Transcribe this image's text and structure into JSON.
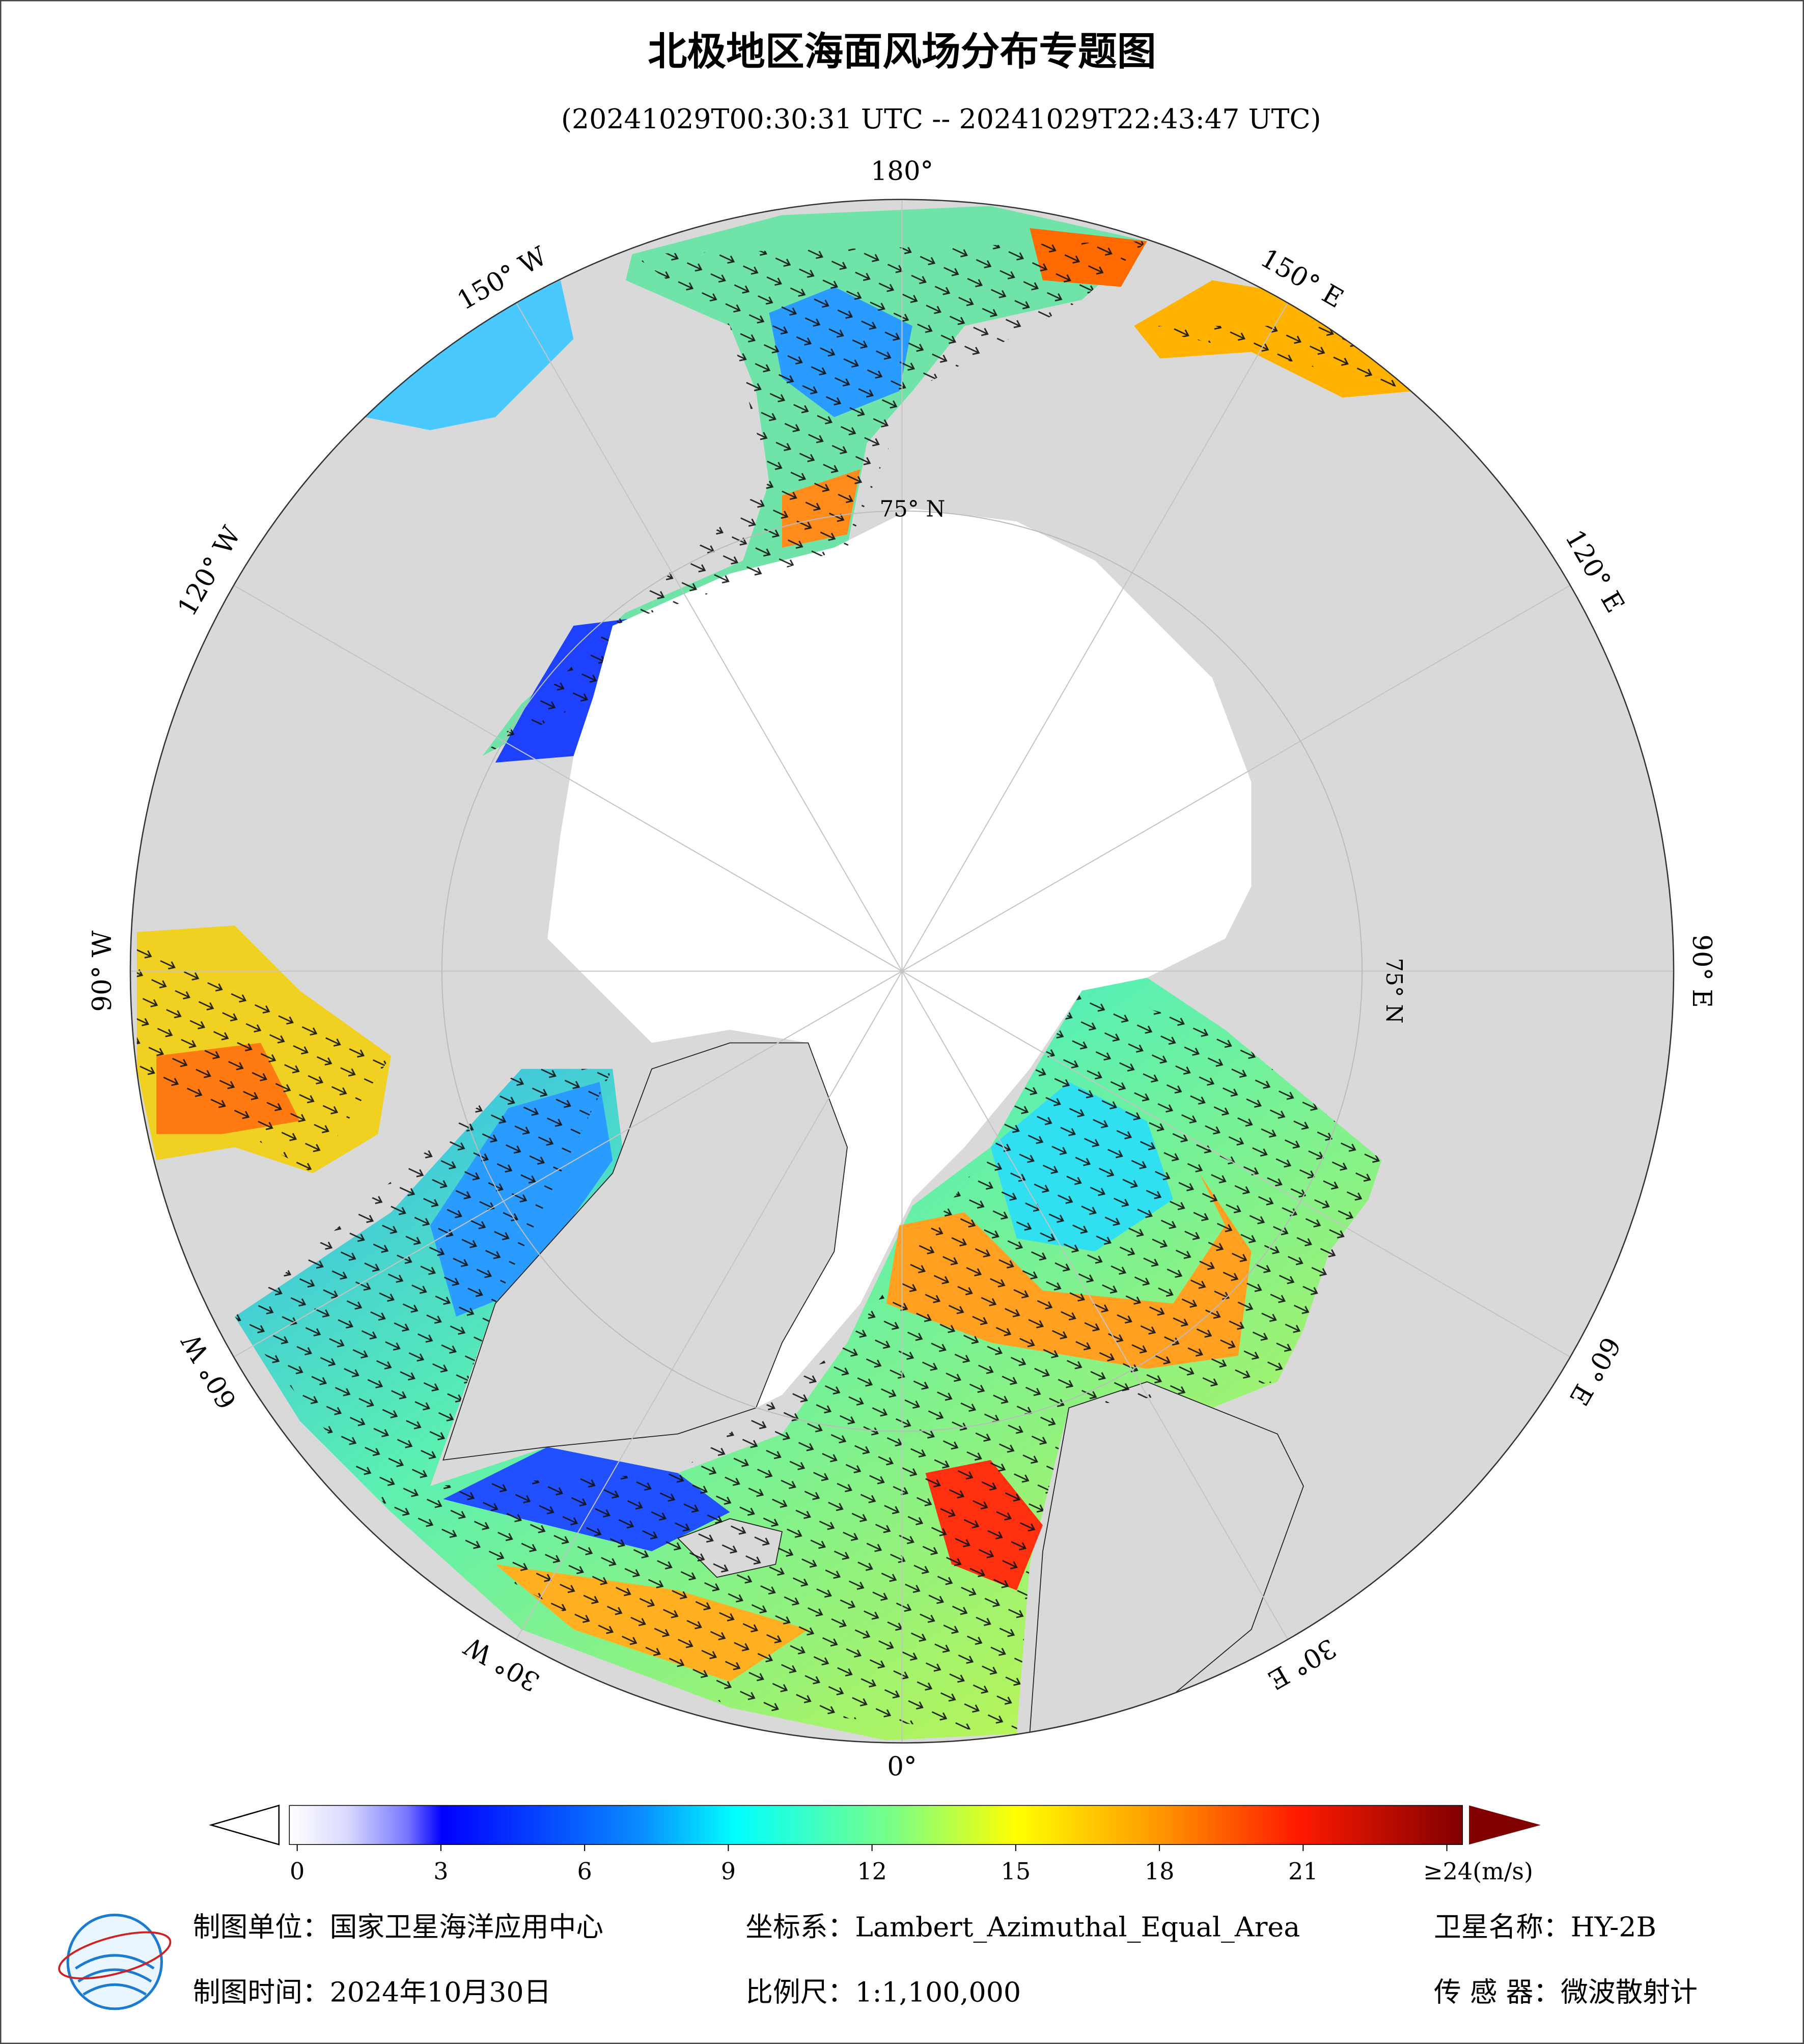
{
  "header": {
    "title": "北极地区海面风场分布专题图",
    "subtitle": "(20241029T00:30:31 UTC -- 20241029T22:43:47 UTC)"
  },
  "map": {
    "longitude_labels": [
      "180°",
      "150° E",
      "120° E",
      "90° E",
      "60° E",
      "30° E",
      "0°",
      "30° W",
      "60° W",
      "90° W",
      "120° W",
      "150° W"
    ],
    "latitude_labels": [
      "75° N",
      "75° N"
    ]
  },
  "colorbar": {
    "lim": [
      0,
      24
    ],
    "ticks": [
      0,
      3,
      6,
      9,
      12,
      15,
      18,
      21,
      {
        "value": 24,
        "label": "≥24(m/s)"
      }
    ]
  },
  "footer": {
    "rows": [
      [
        "制图单位：国家卫星海洋应用中心",
        "坐标系：Lambert_Azimuthal_Equal_Area",
        "卫星名称：HY-2B"
      ],
      [
        "制图时间：2024年10月30日",
        "比例尺：1:1,100,000",
        "传 感 器：微波散射计"
      ]
    ]
  }
}
